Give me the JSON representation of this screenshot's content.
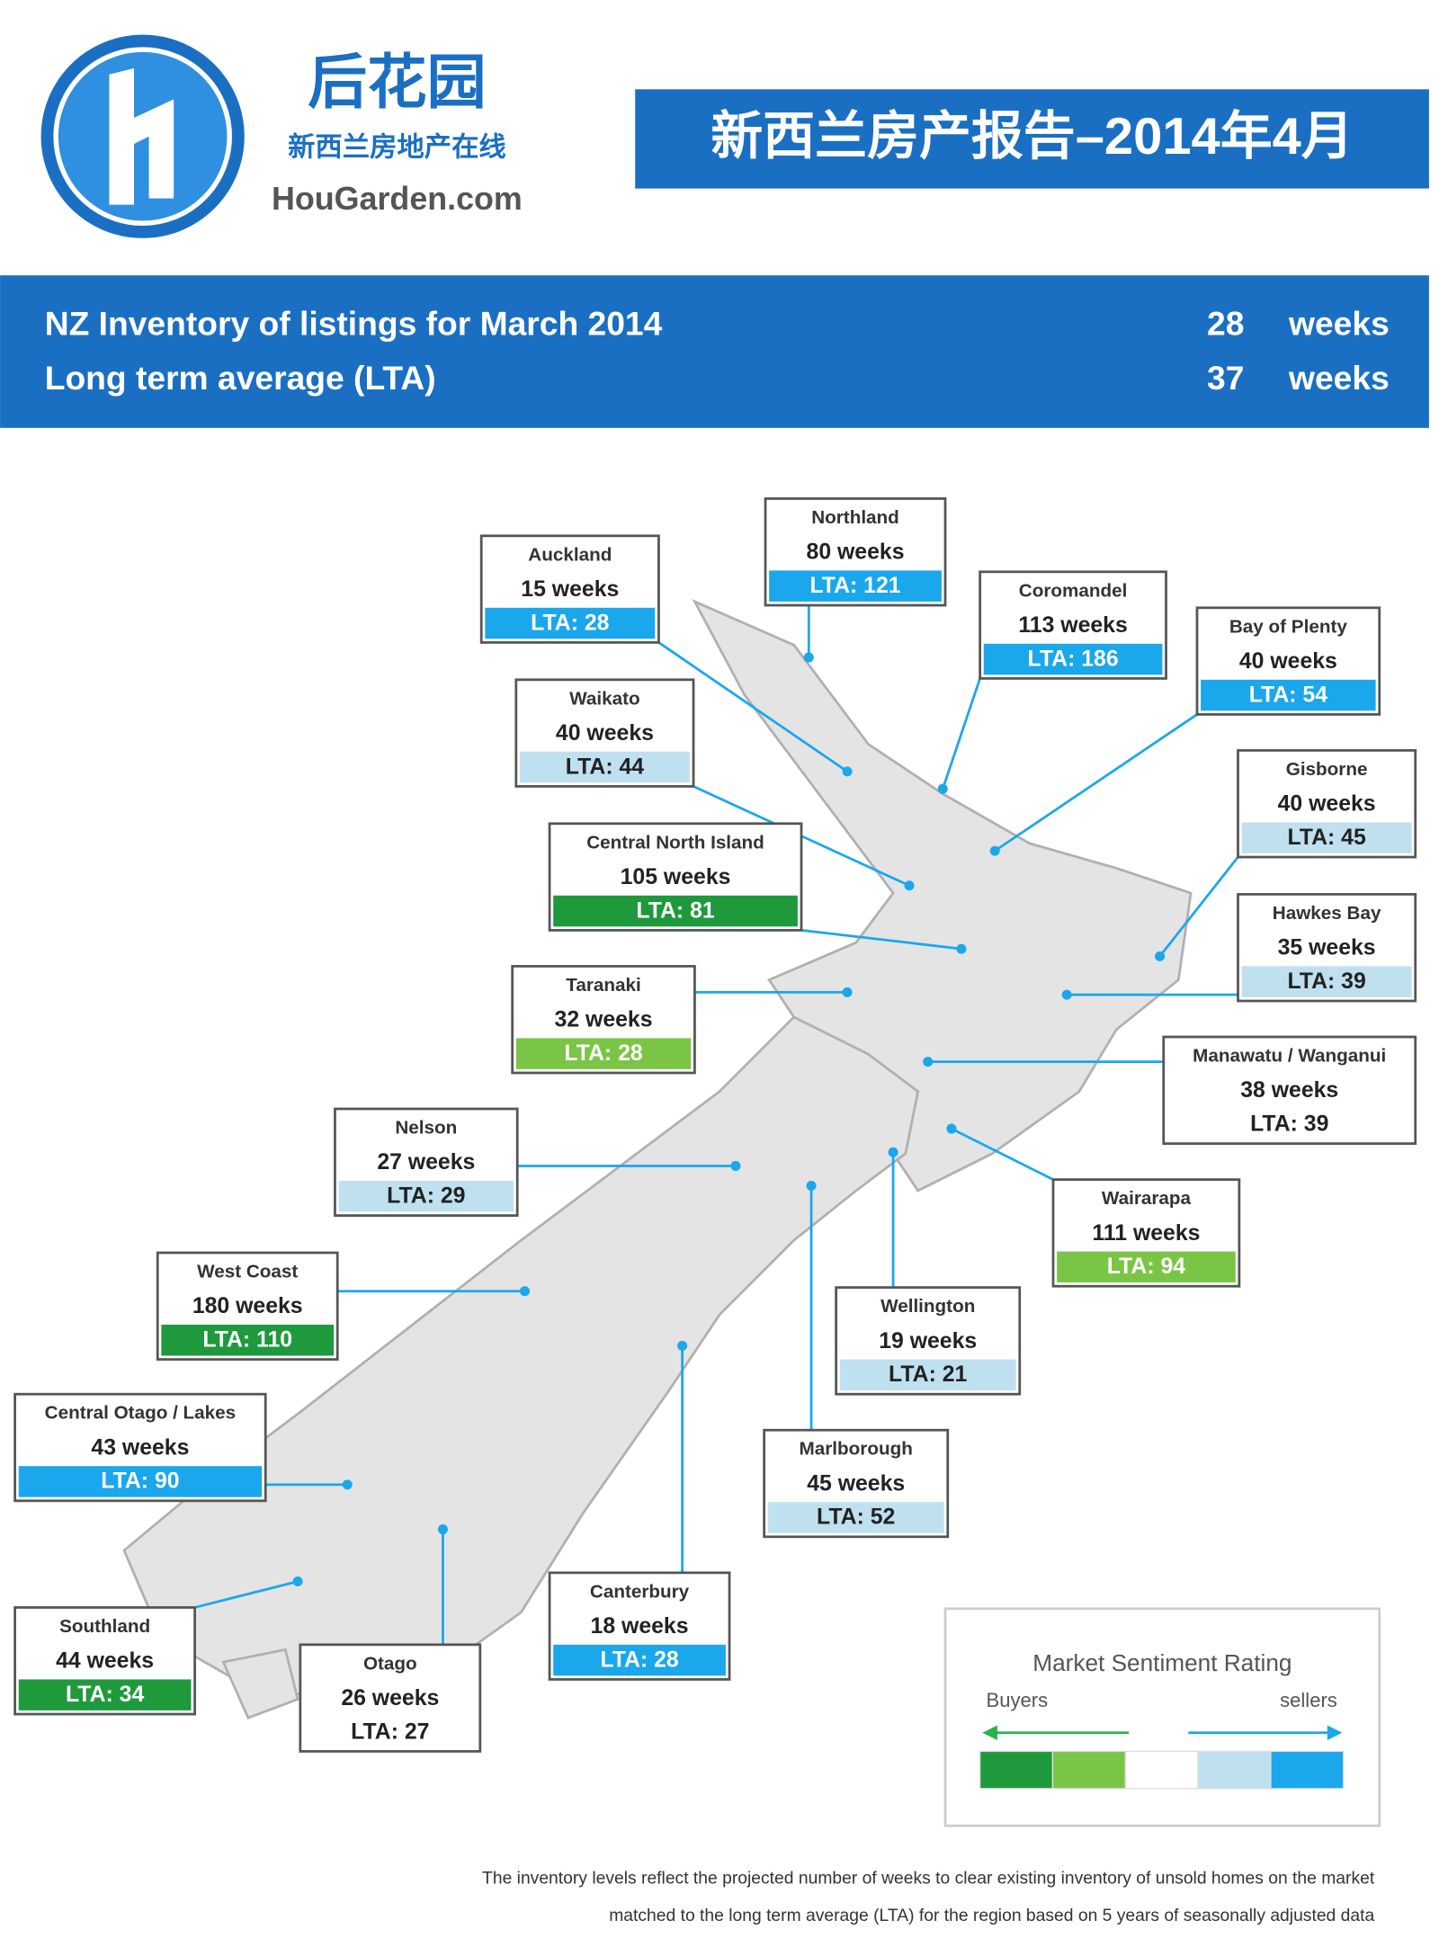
{
  "header": {
    "logo_name": "后花园",
    "logo_tagline": "新西兰房地产在线",
    "logo_site": "HouGarden.com",
    "title": "新西兰房产报告–2014年4月"
  },
  "banner": {
    "rows": [
      {
        "label": "NZ Inventory of listings for March 2014",
        "value": "28",
        "unit": "weeks"
      },
      {
        "label": "Long term average (LTA)",
        "value": "37",
        "unit": "weeks"
      }
    ]
  },
  "regions": [
    {
      "name": "Northland",
      "weeks": "80 weeks",
      "lta": "LTA: 121",
      "color": "#1aa7ec"
    },
    {
      "name": "Auckland",
      "weeks": "15 weeks",
      "lta": "LTA: 28",
      "color": "#1aa7ec"
    },
    {
      "name": "Coromandel",
      "weeks": "113 weeks",
      "lta": "LTA: 186",
      "color": "#1aa7ec"
    },
    {
      "name": "Bay of Plenty",
      "weeks": "40 weeks",
      "lta": "LTA: 54",
      "color": "#1aa7ec"
    },
    {
      "name": "Waikato",
      "weeks": "40 weeks",
      "lta": "LTA: 44",
      "color": "#bfe0ef"
    },
    {
      "name": "Gisborne",
      "weeks": "40 weeks",
      "lta": "LTA: 45",
      "color": "#bfe0ef"
    },
    {
      "name": "Central North Island",
      "weeks": "105 weeks",
      "lta": "LTA: 81",
      "color": "#1e9a3c"
    },
    {
      "name": "Hawkes Bay",
      "weeks": "35 weeks",
      "lta": "LTA: 39",
      "color": "#bfe0ef"
    },
    {
      "name": "Taranaki",
      "weeks": "32 weeks",
      "lta": "LTA: 28",
      "color": "#7bc546"
    },
    {
      "name": "Manawatu / Wanganui",
      "weeks": "38 weeks",
      "lta": "LTA: 39",
      "color": "#ffffff"
    },
    {
      "name": "Nelson",
      "weeks": "27 weeks",
      "lta": "LTA: 29",
      "color": "#bfe0ef"
    },
    {
      "name": "Wairarapa",
      "weeks": "111 weeks",
      "lta": "LTA: 94",
      "color": "#7bc546"
    },
    {
      "name": "West Coast",
      "weeks": "180 weeks",
      "lta": "LTA: 110",
      "color": "#1e9a3c"
    },
    {
      "name": "Wellington",
      "weeks": "19 weeks",
      "lta": "LTA: 21",
      "color": "#bfe0ef"
    },
    {
      "name": "Central Otago / Lakes",
      "weeks": "43 weeks",
      "lta": "LTA: 90",
      "color": "#1aa7ec"
    },
    {
      "name": "Marlborough",
      "weeks": "45 weeks",
      "lta": "LTA: 52",
      "color": "#bfe0ef"
    },
    {
      "name": "Canterbury",
      "weeks": "18 weeks",
      "lta": "LTA: 28",
      "color": "#1aa7ec"
    },
    {
      "name": "Southland",
      "weeks": "44 weeks",
      "lta": "LTA: 34",
      "color": "#1e9a3c"
    },
    {
      "name": "Otago",
      "weeks": "26 weeks",
      "lta": "LTA: 27",
      "color": "#ffffff"
    }
  ],
  "legend": {
    "title": "Market Sentiment Rating",
    "left": "Buyers",
    "right": "sellers",
    "colors": [
      "#1e9a3c",
      "#7bc546",
      "#ffffff",
      "#bfe0ef",
      "#1aa7ec"
    ]
  },
  "footnote": [
    "The inventory levels reflect the projected number of weeks to clear existing inventory of unsold homes on the market",
    "matched to the long term average (LTA) for the region based on 5 years of seasonally adjusted data"
  ]
}
